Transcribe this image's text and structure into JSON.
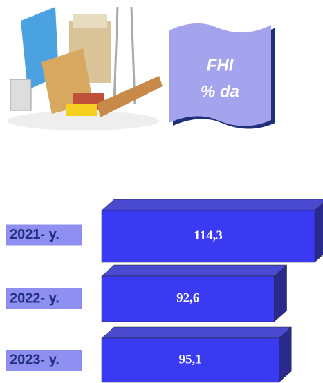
{
  "chart_data": {
    "type": "bar3d",
    "title": "FHI",
    "subtitle": "% da",
    "categories": [
      "2021- y.",
      "2022- y.",
      "2023- y."
    ],
    "values": [
      114.3,
      92.6,
      95.1
    ],
    "value_labels": [
      "114,3",
      "92,6",
      "95,1"
    ],
    "color": "#3a3af2"
  }
}
